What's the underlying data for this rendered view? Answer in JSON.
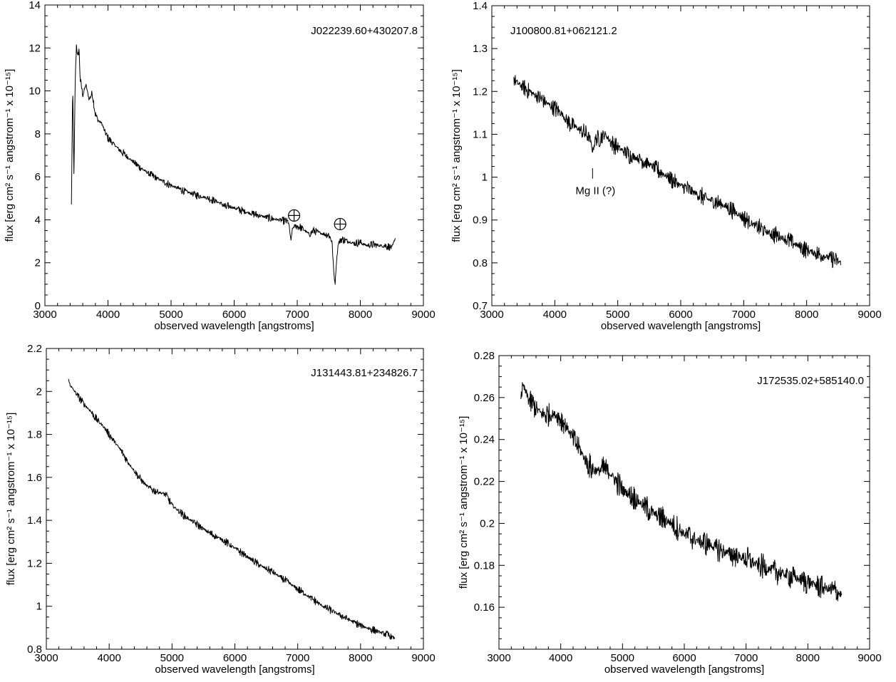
{
  "chart_data": [
    {
      "type": "line",
      "title": "",
      "label": "J022239.60+430207.8",
      "xlabel": "observed wavelength [angstroms]",
      "ylabel": "flux [erg cm² s⁻¹ angstrom⁻¹ x 10⁻¹⁵]",
      "xlim": [
        3000,
        9000
      ],
      "ylim": [
        0,
        14
      ],
      "xticks": [
        3000,
        4000,
        5000,
        6000,
        7000,
        8000,
        9000
      ],
      "yticks": [
        0,
        2,
        4,
        6,
        8,
        10,
        12,
        14
      ],
      "noise": 0.12,
      "series": [
        {
          "x": [
            3420,
            3440,
            3460,
            3480,
            3500,
            3520,
            3540,
            3560,
            3580,
            3600,
            3650,
            3700,
            3750,
            3800,
            3850,
            3900,
            3950,
            4000,
            4100,
            4200,
            4300,
            4400,
            4500,
            4600,
            4700,
            4800,
            5000,
            5200,
            5400,
            5600,
            5800,
            5880,
            5900,
            6000,
            6200,
            6400,
            6600,
            6800,
            6860,
            6880,
            6900,
            6920,
            6950,
            7000,
            7050,
            7100,
            7200,
            7250,
            7300,
            7400,
            7500,
            7550,
            7580,
            7600,
            7620,
            7650,
            7700,
            7800,
            7900,
            8000,
            8100,
            8200,
            8300,
            8400,
            8500,
            8560
          ],
          "y": [
            4.7,
            10.3,
            6.0,
            10.5,
            12.2,
            11.5,
            12.0,
            10.5,
            10.2,
            9.8,
            10.3,
            9.6,
            9.9,
            8.9,
            8.6,
            8.5,
            8.1,
            7.8,
            7.5,
            7.2,
            6.95,
            6.7,
            6.45,
            6.25,
            6.05,
            5.9,
            5.6,
            5.35,
            5.15,
            5.0,
            4.75,
            4.55,
            4.65,
            4.55,
            4.35,
            4.2,
            4.05,
            3.95,
            3.9,
            3.5,
            3.0,
            3.55,
            3.7,
            3.7,
            3.65,
            3.55,
            3.3,
            3.5,
            3.45,
            3.35,
            3.3,
            3.0,
            1.5,
            1.0,
            2.0,
            2.9,
            3.1,
            3.0,
            2.9,
            2.95,
            2.8,
            2.85,
            2.8,
            2.8,
            2.7,
            3.2
          ]
        }
      ],
      "annotations": [
        {
          "text": "⊕",
          "x": 6950,
          "y": 4.2
        },
        {
          "text": "⊕",
          "x": 7680,
          "y": 3.8
        }
      ]
    },
    {
      "type": "line",
      "title": "",
      "label": "J100800.81+062121.2",
      "xlabel": "observed wavelength [angstroms]",
      "ylabel": "flux [erg cm² s⁻¹ angstrom⁻¹ x 10⁻¹⁵]",
      "xlim": [
        3000,
        9000
      ],
      "ylim": [
        0.7,
        1.4
      ],
      "xticks": [
        3000,
        4000,
        5000,
        6000,
        7000,
        8000,
        9000
      ],
      "yticks": [
        0.7,
        0.8,
        0.9,
        1,
        1.1,
        1.2,
        1.3,
        1.4
      ],
      "noise": 0.014,
      "series": [
        {
          "x": [
            3350,
            3400,
            3500,
            3600,
            3700,
            3800,
            3900,
            4000,
            4100,
            4200,
            4300,
            4400,
            4500,
            4560,
            4600,
            4650,
            4700,
            4800,
            4900,
            5000,
            5200,
            5400,
            5600,
            5800,
            6000,
            6200,
            6400,
            6600,
            6800,
            7000,
            7200,
            7400,
            7600,
            7800,
            8000,
            8200,
            8400,
            8550
          ],
          "y": [
            1.23,
            1.22,
            1.21,
            1.2,
            1.19,
            1.18,
            1.17,
            1.16,
            1.15,
            1.13,
            1.12,
            1.11,
            1.1,
            1.09,
            1.06,
            1.09,
            1.09,
            1.1,
            1.08,
            1.07,
            1.05,
            1.04,
            1.02,
            1.0,
            0.98,
            0.965,
            0.95,
            0.94,
            0.925,
            0.905,
            0.885,
            0.87,
            0.86,
            0.845,
            0.83,
            0.82,
            0.81,
            0.8
          ]
        }
      ],
      "annotations": [
        {
          "text": "Mg II (?)",
          "x": 4600,
          "y": 1.0
        }
      ]
    },
    {
      "type": "line",
      "title": "",
      "label": "J131443.81+234826.7",
      "xlabel": "observed wavelength [angstroms]",
      "ylabel": "flux [erg cm² s⁻¹ angstrom⁻¹ x 10⁻¹⁵]",
      "xlim": [
        3000,
        9000
      ],
      "ylim": [
        0.8,
        2.2
      ],
      "xticks": [
        3000,
        4000,
        5000,
        6000,
        7000,
        8000,
        9000
      ],
      "yticks": [
        0.8,
        1,
        1.2,
        1.4,
        1.6,
        1.8,
        2,
        2.2
      ],
      "noise": 0.012,
      "series": [
        {
          "x": [
            3350,
            3400,
            3500,
            3600,
            3700,
            3800,
            3900,
            4000,
            4100,
            4200,
            4300,
            4400,
            4500,
            4600,
            4700,
            4800,
            4900,
            5000,
            5200,
            5400,
            5600,
            5800,
            6000,
            6200,
            6400,
            6600,
            6800,
            7000,
            7200,
            7400,
            7600,
            7800,
            8000,
            8200,
            8400,
            8550
          ],
          "y": [
            2.05,
            2.02,
            1.98,
            1.94,
            1.91,
            1.87,
            1.84,
            1.8,
            1.76,
            1.72,
            1.67,
            1.63,
            1.59,
            1.56,
            1.54,
            1.53,
            1.52,
            1.47,
            1.42,
            1.38,
            1.34,
            1.31,
            1.27,
            1.23,
            1.19,
            1.16,
            1.12,
            1.08,
            1.04,
            1.0,
            0.97,
            0.94,
            0.91,
            0.89,
            0.87,
            0.85
          ]
        }
      ],
      "annotations": []
    },
    {
      "type": "line",
      "title": "",
      "label": "J172535.02+585140.0",
      "xlabel": "observed wavelength [angstroms]",
      "ylabel": "flux [erg cm² s⁻¹ angstrom⁻¹ x 10⁻¹⁵]",
      "xlim": [
        3000,
        9000
      ],
      "ylim": [
        0.14,
        0.28
      ],
      "xticks": [
        3000,
        4000,
        5000,
        6000,
        7000,
        8000,
        9000
      ],
      "yticks": [
        0.16,
        0.18,
        0.2,
        0.22,
        0.24,
        0.26,
        0.28
      ],
      "noise": 0.004,
      "series": [
        {
          "x": [
            3350,
            3400,
            3500,
            3600,
            3700,
            3800,
            3900,
            4000,
            4100,
            4200,
            4300,
            4400,
            4500,
            4600,
            4700,
            4800,
            4900,
            5000,
            5200,
            5400,
            5600,
            5800,
            6000,
            6200,
            6400,
            6600,
            6800,
            7000,
            7200,
            7400,
            7600,
            7800,
            8000,
            8200,
            8400,
            8550
          ],
          "y": [
            0.262,
            0.265,
            0.258,
            0.255,
            0.252,
            0.252,
            0.252,
            0.25,
            0.246,
            0.24,
            0.236,
            0.23,
            0.226,
            0.225,
            0.226,
            0.224,
            0.22,
            0.216,
            0.212,
            0.207,
            0.203,
            0.2,
            0.195,
            0.192,
            0.19,
            0.187,
            0.185,
            0.183,
            0.18,
            0.178,
            0.176,
            0.174,
            0.172,
            0.17,
            0.168,
            0.166
          ]
        }
      ],
      "annotations": []
    }
  ]
}
